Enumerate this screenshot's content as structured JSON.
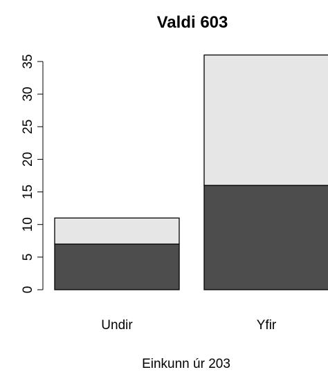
{
  "chart_data": {
    "type": "bar",
    "stacked": true,
    "title": "Valdi 603",
    "xlabel": "Einkunn úr 203",
    "ylabel": "",
    "categories": [
      "Undir",
      "Yfir"
    ],
    "series": [
      {
        "values": [
          7,
          16
        ],
        "color": "#4d4d4d"
      },
      {
        "values": [
          4,
          20
        ],
        "color": "#e6e6e6"
      }
    ],
    "ylim": [
      0,
      35
    ],
    "yticks": [
      0,
      5,
      10,
      15,
      20,
      25,
      30,
      35
    ],
    "grid": false,
    "legend": "none"
  }
}
